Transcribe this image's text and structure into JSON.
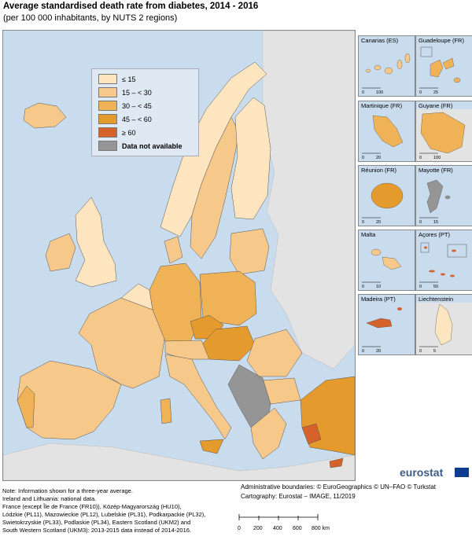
{
  "header": {
    "title": "Average standardised death rate from diabetes, 2014 - 2016",
    "subtitle": "(per 100 000 inhabitants, by NUTS 2 regions)"
  },
  "legend": {
    "items": [
      {
        "label": "≤ 15",
        "color": "#fde5bf"
      },
      {
        "label": "15 – < 30",
        "color": "#f6c98a"
      },
      {
        "label": "30 – < 45",
        "color": "#efb257"
      },
      {
        "label": "45 – < 60",
        "color": "#e59a2e"
      },
      {
        "label": "≥ 60",
        "color": "#d5622a"
      },
      {
        "label": "Data not available",
        "color": "#959595"
      }
    ]
  },
  "insets": [
    {
      "label": "Canarias (ES)",
      "scale": [
        "0",
        "100"
      ]
    },
    {
      "label": "Guadeloupe (FR)",
      "scale": [
        "0",
        "25"
      ]
    },
    {
      "label": "Martinique (FR)",
      "scale": [
        "0",
        "20"
      ]
    },
    {
      "label": "Guyane (FR)",
      "scale": [
        "0",
        "100"
      ]
    },
    {
      "label": "Réunion (FR)",
      "scale": [
        "0",
        "20"
      ]
    },
    {
      "label": "Mayotte (FR)",
      "scale": [
        "0",
        "15"
      ]
    },
    {
      "label": "Malta",
      "scale": [
        "0",
        "10"
      ]
    },
    {
      "label": "Açores (PT)",
      "scale": [
        "0",
        "50"
      ]
    },
    {
      "label": "Madeira (PT)",
      "scale": [
        "0",
        "20"
      ]
    },
    {
      "label": "Liechtenstein",
      "scale": [
        "0",
        "5"
      ]
    }
  ],
  "branding": {
    "logo": "eurostat"
  },
  "notes": [
    "Note: Information shown for a three-year average.",
    "Ireland and Lithuania: national data.",
    "France (except Île de France (FR10)), Közép-Magyarország (HU10),",
    "Lódzkie (PL11), Mazowieckie (PL12), Lubelskie (PL31), Podkarpackie (PL32),",
    "Swietokrzyskie (PL33), Podlaskie (PL34), Eastern Scotland (UKM2) and",
    "South Western Scotland (UKM3): 2013-2015 data instead of 2014-2016."
  ],
  "credits": {
    "line1": "Administrative boundaries: © EuroGeographics © UN–FAO © Turkstat",
    "line2": "Cartography: Eurostat – IMAGE, 11/2019"
  },
  "scalebar": {
    "ticks": [
      "0",
      "200",
      "400",
      "600",
      "800 km"
    ]
  }
}
